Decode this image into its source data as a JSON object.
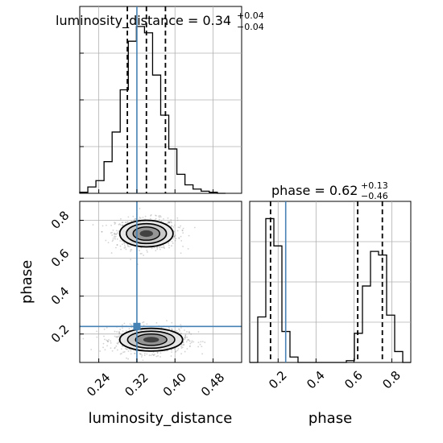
{
  "chart_data": {
    "type": "corner",
    "parameters": [
      "luminosity_distance",
      "phase"
    ],
    "colors": {
      "truth": "#4682b4",
      "lines": "#000000",
      "samples": "#808080"
    },
    "grid": true,
    "truth": {
      "luminosity_distance": 0.32,
      "phase": 0.24
    },
    "luminosity_distance": {
      "title": {
        "main": "luminosity_distance = 0.34",
        "upper": "+0.04",
        "lower": "−0.04"
      },
      "quantiles": [
        0.3,
        0.34,
        0.38
      ],
      "xlim": [
        0.2,
        0.54
      ],
      "xticks": [
        0.24,
        0.32,
        0.4,
        0.48
      ],
      "xtick_labels": [
        "0.24",
        "0.32",
        "0.40",
        "0.48"
      ],
      "xlabel": "luminosity_distance",
      "histogram": {
        "bin_edges": [
          0.2,
          0.217,
          0.234,
          0.251,
          0.268,
          0.285,
          0.302,
          0.319,
          0.336,
          0.353,
          0.37,
          0.387,
          0.404,
          0.421,
          0.438,
          0.455,
          0.472,
          0.489,
          0.506
        ],
        "counts": [
          0.5,
          3,
          6,
          15,
          29,
          49,
          72,
          79,
          76,
          56,
          37,
          21,
          9,
          4,
          2,
          1,
          0.5,
          0
        ]
      }
    },
    "phase": {
      "title": {
        "main": "phase = 0.62",
        "upper": "+0.13",
        "lower": "−0.46"
      },
      "quantiles": [
        0.16,
        0.62,
        0.75
      ],
      "xlim": [
        0.05,
        0.9
      ],
      "xticks": [
        0.2,
        0.4,
        0.6,
        0.8
      ],
      "xtick_labels": [
        "0.2",
        "0.4",
        "0.6",
        "0.8"
      ],
      "xlabel": "phase",
      "histogram": {
        "bin_edges": [
          0.05,
          0.0925,
          0.135,
          0.1775,
          0.22,
          0.2625,
          0.305,
          0.3475,
          0.39,
          0.4325,
          0.475,
          0.5175,
          0.56,
          0.6025,
          0.645,
          0.6875,
          0.73,
          0.7725,
          0.815,
          0.8575,
          0.9
        ],
        "counts": [
          0,
          25,
          79,
          64,
          17,
          3,
          0,
          0,
          0,
          0,
          0,
          0,
          1,
          16,
          42,
          61,
          59,
          26,
          6,
          0
        ]
      }
    },
    "joint": {
      "xlim": [
        0.2,
        0.54
      ],
      "ylim": [
        0.05,
        0.9
      ],
      "xticks": [
        0.24,
        0.32,
        0.4,
        0.48
      ],
      "yticks": [
        0.2,
        0.4,
        0.6,
        0.8
      ],
      "ytick_labels": [
        "0.2",
        "0.4",
        "0.6",
        "0.8"
      ],
      "ylabel": "phase",
      "modes": [
        {
          "cx": 0.34,
          "cy": 0.73,
          "sx": 0.028,
          "sy": 0.035
        },
        {
          "cx": 0.35,
          "cy": 0.17,
          "sx": 0.033,
          "sy": 0.03
        }
      ],
      "contour_levels": [
        0.5,
        1.0,
        1.5,
        2.0
      ]
    }
  }
}
